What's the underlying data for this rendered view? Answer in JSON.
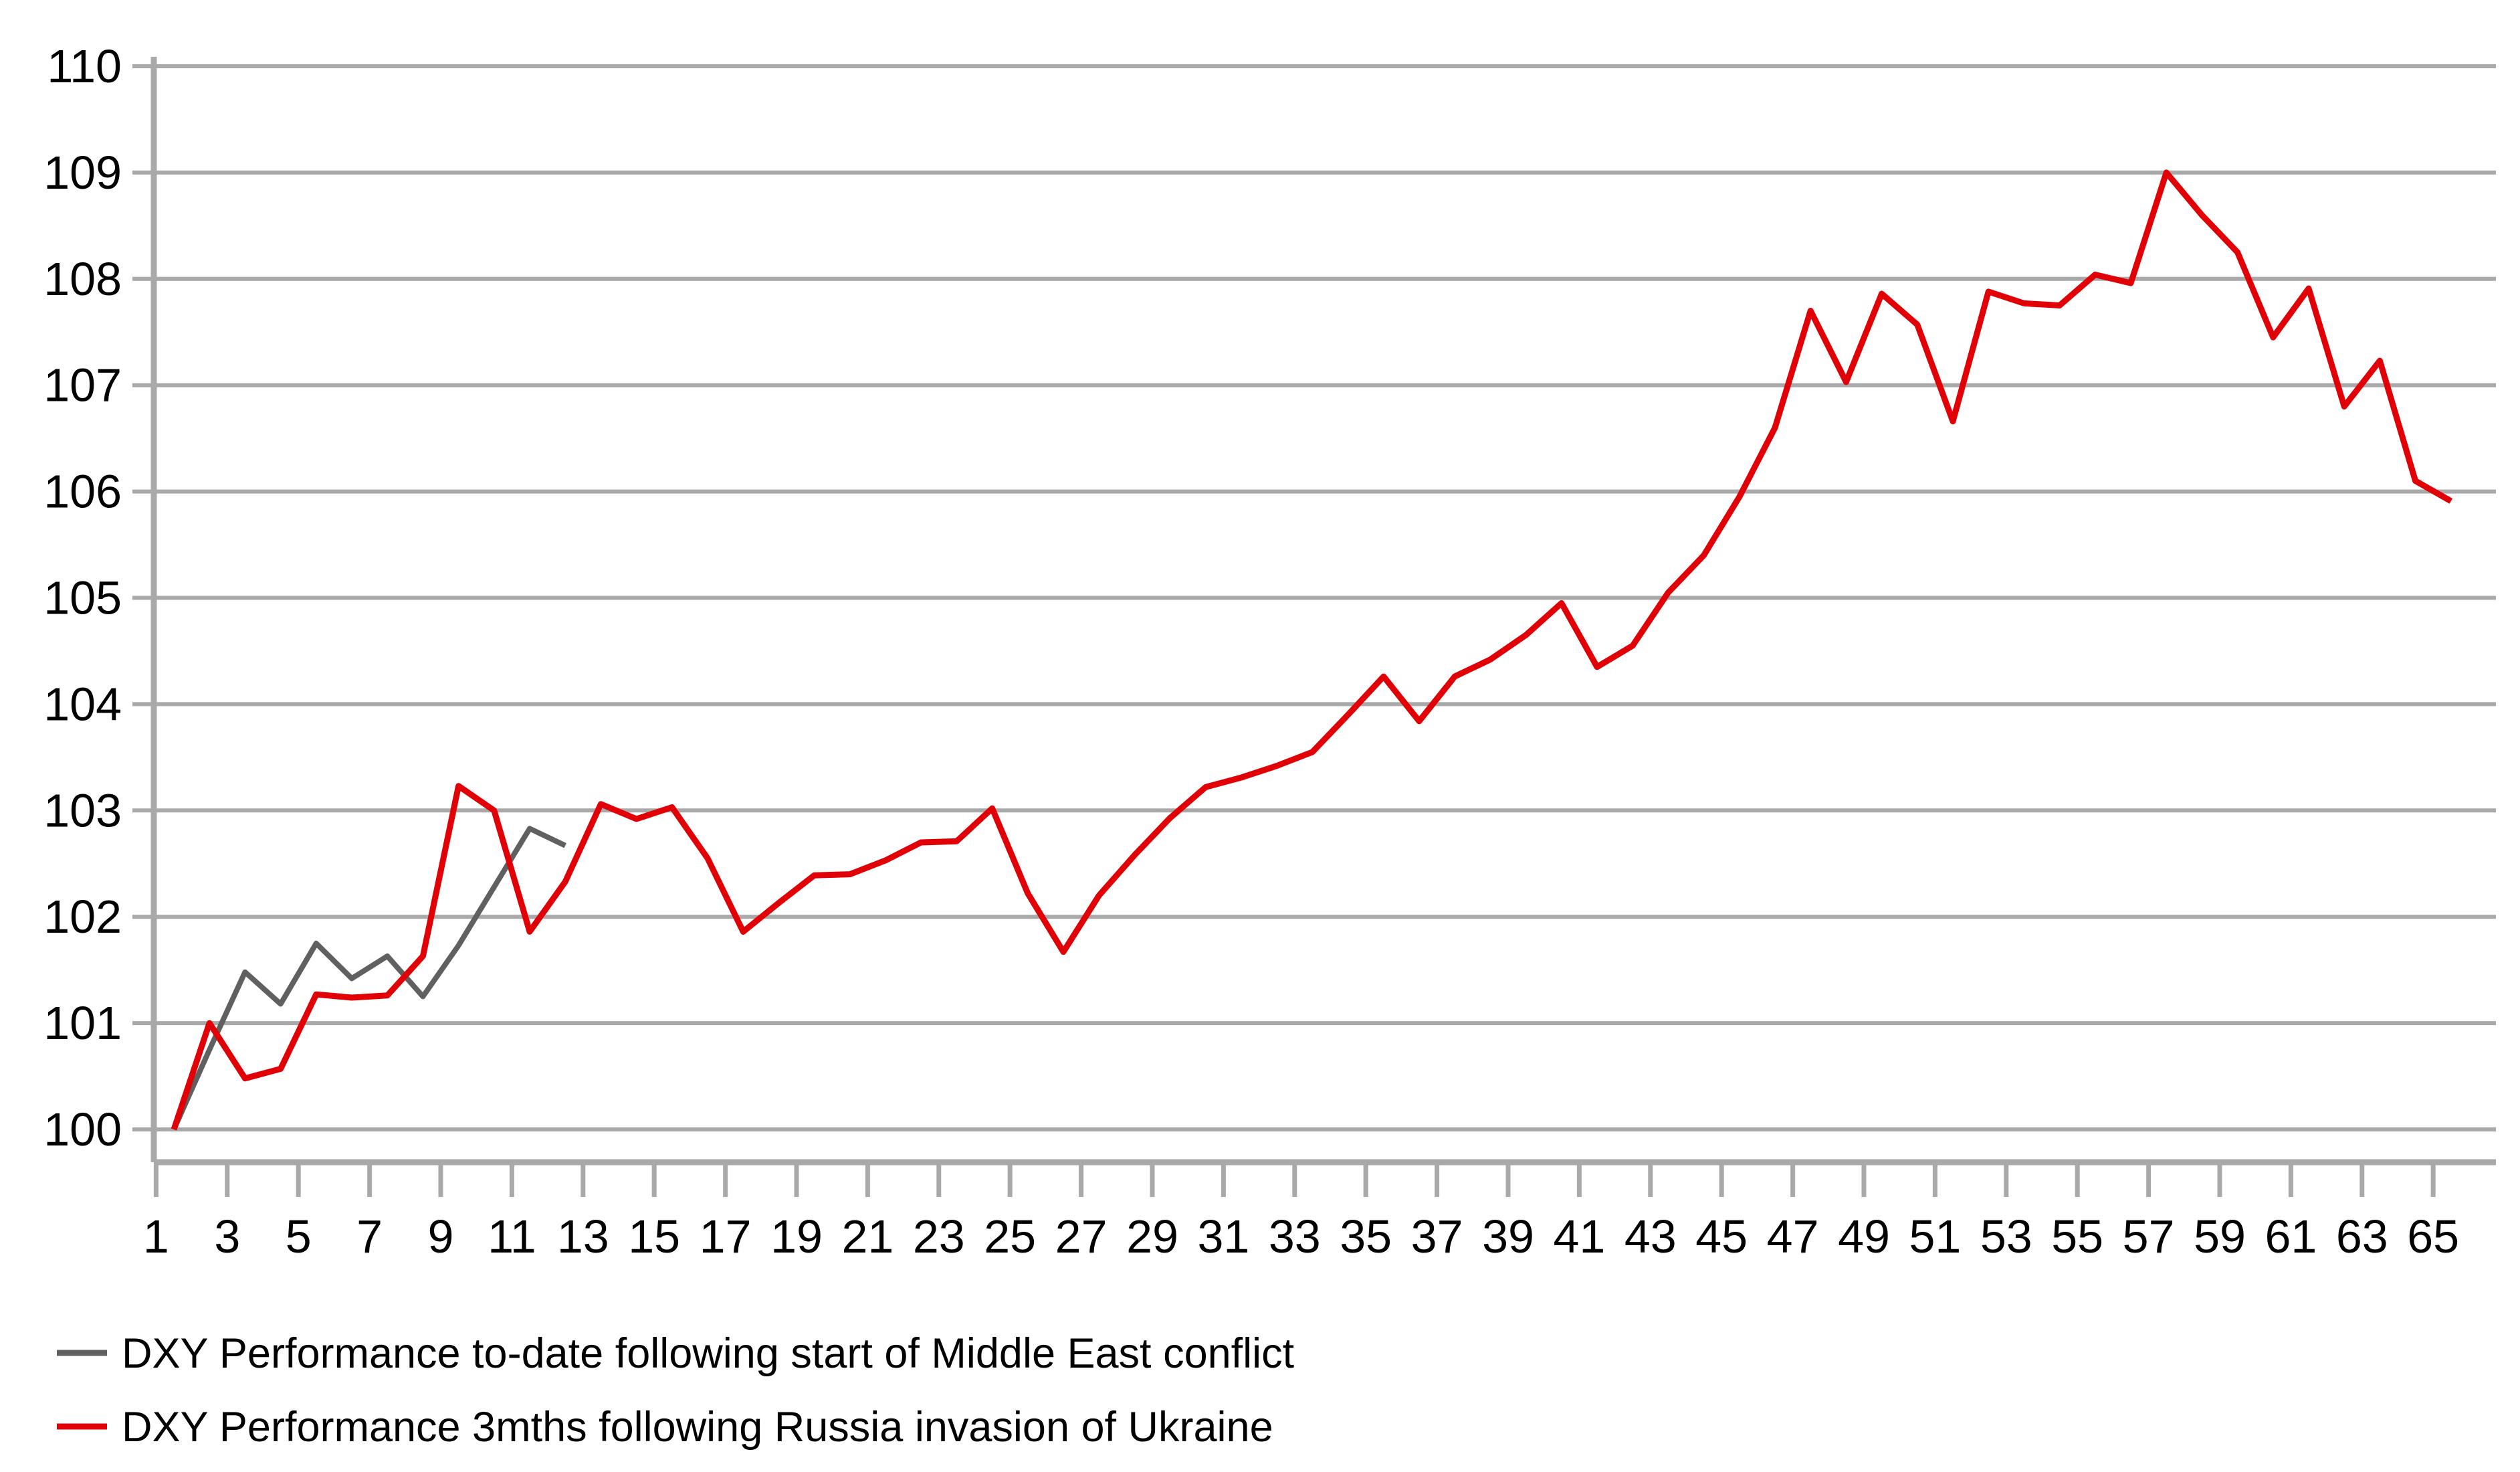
{
  "chart_data": {
    "type": "line",
    "title": "",
    "xlabel": "",
    "ylabel": "",
    "ylim": [
      100,
      110
    ],
    "xlim": [
      1,
      65
    ],
    "grid": "horizontal",
    "legend_position": "bottom-left",
    "x": [
      1,
      2,
      3,
      4,
      5,
      6,
      7,
      8,
      9,
      10,
      11,
      12,
      13,
      14,
      15,
      16,
      17,
      18,
      19,
      20,
      21,
      22,
      23,
      24,
      25,
      26,
      27,
      28,
      29,
      30,
      31,
      32,
      33,
      34,
      35,
      36,
      37,
      38,
      39,
      40,
      41,
      42,
      43,
      44,
      45,
      46,
      47,
      48,
      49,
      50,
      51,
      52,
      53,
      54,
      55,
      56,
      57,
      58,
      59,
      60,
      61,
      62,
      63,
      64,
      65
    ],
    "x_tick_labels": [
      "1",
      "3",
      "5",
      "7",
      "9",
      "11",
      "13",
      "15",
      "17",
      "19",
      "21",
      "23",
      "25",
      "27",
      "29",
      "31",
      "33",
      "35",
      "37",
      "39",
      "41",
      "43",
      "45",
      "47",
      "49",
      "51",
      "53",
      "55",
      "57",
      "59",
      "61",
      "63",
      "65"
    ],
    "y_tick_labels": [
      "100",
      "101",
      "102",
      "103",
      "104",
      "105",
      "106",
      "107",
      "108",
      "109",
      "110"
    ],
    "series": [
      {
        "name": "DXY Performance to-date following start of Middle East conflict",
        "color": "#606060",
        "values": [
          100.0,
          100.75,
          101.48,
          101.18,
          101.75,
          101.42,
          101.63,
          101.25,
          101.73,
          102.28,
          102.83,
          102.67
        ]
      },
      {
        "name": "DXY Performance 3mths following Russia invasion of Ukraine",
        "color": "#e00006",
        "values": [
          100.0,
          101.0,
          100.48,
          100.57,
          101.27,
          101.24,
          101.26,
          101.63,
          103.23,
          103.0,
          101.86,
          102.33,
          103.06,
          102.92,
          103.03,
          102.55,
          101.86,
          102.13,
          102.39,
          102.4,
          102.53,
          102.7,
          102.71,
          103.02,
          102.22,
          101.67,
          102.2,
          102.58,
          102.93,
          103.22,
          103.31,
          103.42,
          103.55,
          103.9,
          104.26,
          103.84,
          104.26,
          104.42,
          104.65,
          104.95,
          104.35,
          104.55,
          105.05,
          105.4,
          105.95,
          106.6,
          107.7,
          107.03,
          107.86,
          107.57,
          106.66,
          107.88,
          107.77,
          107.75,
          108.04,
          107.96,
          109.0,
          108.6,
          108.25,
          107.45,
          107.91,
          106.8,
          107.23,
          106.1,
          105.91
        ]
      }
    ]
  },
  "legend": {
    "items": [
      {
        "label": "DXY Performance to-date following start of Middle East conflict",
        "color": "#606060"
      },
      {
        "label": "DXY Performance 3mths following Russia invasion of Ukraine",
        "color": "#e00006"
      }
    ]
  },
  "colors": {
    "gridline": "#a9a9a9",
    "axis": "#a9a9a9",
    "text": "#000000",
    "background": "#ffffff"
  }
}
